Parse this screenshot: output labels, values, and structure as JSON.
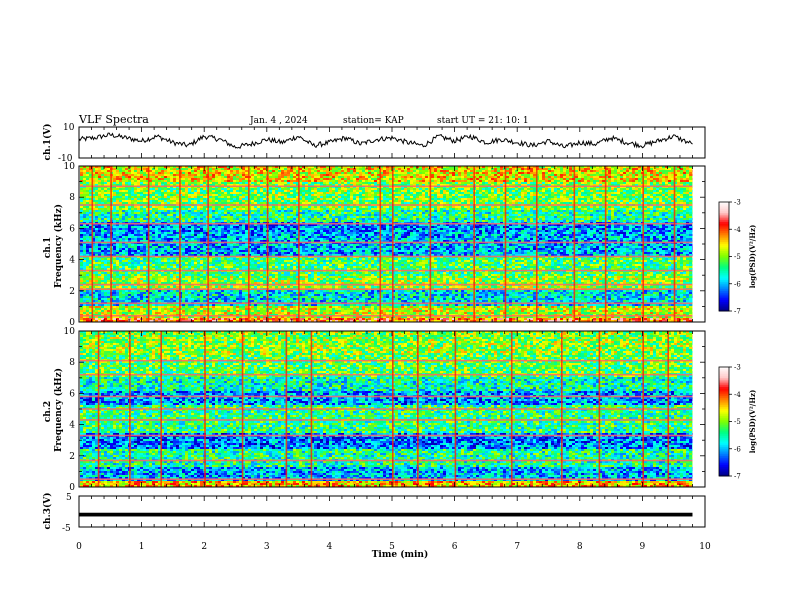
{
  "header": {
    "title": "VLF Spectra",
    "date": "Jan. 4 , 2024",
    "station": "station= KAP",
    "start": "start UT =  21: 10: 1"
  },
  "chart_data": [
    {
      "type": "line",
      "panel": "ch1-waveform",
      "ylabel": "ch.1(V)",
      "ylim": [
        -10,
        10
      ],
      "ytick_labels": [
        "10",
        "-10"
      ],
      "xlim": [
        0,
        9.8
      ],
      "x_unit": "min",
      "series_approx": [
        [
          0,
          2
        ],
        [
          0.25,
          3
        ],
        [
          0.5,
          5
        ],
        [
          0.75,
          3
        ],
        [
          1,
          1
        ],
        [
          1.25,
          4
        ],
        [
          1.5,
          0
        ],
        [
          1.75,
          -2
        ],
        [
          2,
          4
        ],
        [
          2.25,
          2
        ],
        [
          2.5,
          -3
        ],
        [
          2.75,
          -1
        ],
        [
          3,
          2
        ],
        [
          3.25,
          0
        ],
        [
          3.5,
          4
        ],
        [
          3.75,
          -2
        ],
        [
          4,
          0
        ],
        [
          4.25,
          3
        ],
        [
          4.5,
          -1
        ],
        [
          4.75,
          2
        ],
        [
          5,
          3
        ],
        [
          5.25,
          0
        ],
        [
          5.5,
          -2
        ],
        [
          5.75,
          4
        ],
        [
          6,
          1
        ],
        [
          6.25,
          4
        ],
        [
          6.5,
          0
        ],
        [
          6.75,
          2
        ],
        [
          7,
          0
        ],
        [
          7.25,
          -2
        ],
        [
          7.5,
          1
        ],
        [
          7.75,
          -3
        ],
        [
          8,
          0
        ],
        [
          8.25,
          -1
        ],
        [
          8.5,
          3
        ],
        [
          8.75,
          0
        ],
        [
          9,
          -2
        ],
        [
          9.25,
          1
        ],
        [
          9.5,
          4
        ],
        [
          9.8,
          -1
        ]
      ]
    },
    {
      "type": "heatmap",
      "panel": "ch1-spectrogram",
      "ylabel": "ch.1 Frequency (kHz)",
      "ylim": [
        0,
        10
      ],
      "ytick_labels": [
        "0",
        "2",
        "4",
        "6",
        "8",
        "10"
      ],
      "xlim": [
        0,
        9.8
      ],
      "bands_khz": [
        {
          "from": 9.0,
          "to": 10.0,
          "level": -4.6
        },
        {
          "from": 7.2,
          "to": 9.0,
          "level": -5.1
        },
        {
          "from": 6.4,
          "to": 7.2,
          "level": -5.5
        },
        {
          "from": 5.5,
          "to": 6.4,
          "level": -6.1
        },
        {
          "from": 4.2,
          "to": 5.5,
          "level": -6.0
        },
        {
          "from": 3.0,
          "to": 4.2,
          "level": -5.3
        },
        {
          "from": 2.0,
          "to": 3.0,
          "level": -5.0
        },
        {
          "from": 1.0,
          "to": 2.0,
          "level": -5.8
        },
        {
          "from": 0.3,
          "to": 1.0,
          "level": -4.8
        },
        {
          "from": 0.0,
          "to": 0.3,
          "level": -4.0
        }
      ],
      "lines_khz": [
        0.4,
        1.2,
        2.1,
        2.4,
        3.3,
        4.2,
        5.1,
        6.3,
        7.5,
        8.7
      ],
      "burst_times_min": [
        0.2,
        0.5,
        1.1,
        1.6,
        2.05,
        2.7,
        3.0,
        3.5,
        4.8,
        5.0,
        5.6,
        6.3,
        6.8,
        7.3,
        7.9,
        8.4,
        9.0,
        9.5
      ]
    },
    {
      "type": "heatmap",
      "panel": "ch2-spectrogram",
      "ylabel": "ch.2 Frequency (kHz)",
      "ylim": [
        0,
        10
      ],
      "ytick_labels": [
        "0",
        "2",
        "4",
        "6",
        "8",
        "10"
      ],
      "xlim": [
        0,
        9.8
      ],
      "bands_khz": [
        {
          "from": 8.5,
          "to": 10.0,
          "level": -5.0
        },
        {
          "from": 7.0,
          "to": 8.5,
          "level": -5.2
        },
        {
          "from": 6.2,
          "to": 7.0,
          "level": -5.6
        },
        {
          "from": 5.3,
          "to": 6.2,
          "level": -6.1
        },
        {
          "from": 3.5,
          "to": 5.3,
          "level": -5.4
        },
        {
          "from": 2.5,
          "to": 3.5,
          "level": -6.2
        },
        {
          "from": 1.3,
          "to": 2.5,
          "level": -5.5
        },
        {
          "from": 0.4,
          "to": 1.3,
          "level": -6.0
        },
        {
          "from": 0.0,
          "to": 0.4,
          "level": -4.4
        }
      ],
      "lines_khz": [
        0.5,
        1.7,
        3.3,
        4.3,
        5.0,
        5.8,
        7.2,
        8.1
      ],
      "burst_times_min": [
        0.3,
        0.8,
        1.3,
        2.0,
        2.6,
        3.3,
        3.7,
        5.0,
        5.4,
        6.0,
        6.9,
        7.7,
        8.3,
        9.0,
        9.4
      ]
    },
    {
      "type": "line",
      "panel": "ch3-waveform",
      "ylabel": "ch.3(V)",
      "ylim": [
        -5,
        5
      ],
      "ytick_labels": [
        "5",
        "-5"
      ],
      "xlim": [
        0,
        9.8
      ],
      "series_approx": [
        [
          0,
          -1
        ],
        [
          9.8,
          -1
        ]
      ],
      "band_halfwidth": 0.6
    }
  ],
  "x_axis": {
    "label": "Time (min)",
    "range": [
      0,
      10
    ],
    "tick_labels": [
      "0",
      "1",
      "2",
      "3",
      "4",
      "5",
      "6",
      "7",
      "8",
      "9",
      "10"
    ]
  },
  "colorbar": {
    "label": "log(PSD)(V²/Hz)",
    "range": [
      -7,
      -3
    ],
    "tick_labels": [
      "-3",
      "-4",
      "-5",
      "-6",
      "-7"
    ],
    "colors": [
      "#000080",
      "#0000ff",
      "#0080ff",
      "#00ffff",
      "#00ff80",
      "#80ff00",
      "#ffff00",
      "#ff8000",
      "#ff0000",
      "#ffc8c8",
      "#ffffff"
    ]
  }
}
